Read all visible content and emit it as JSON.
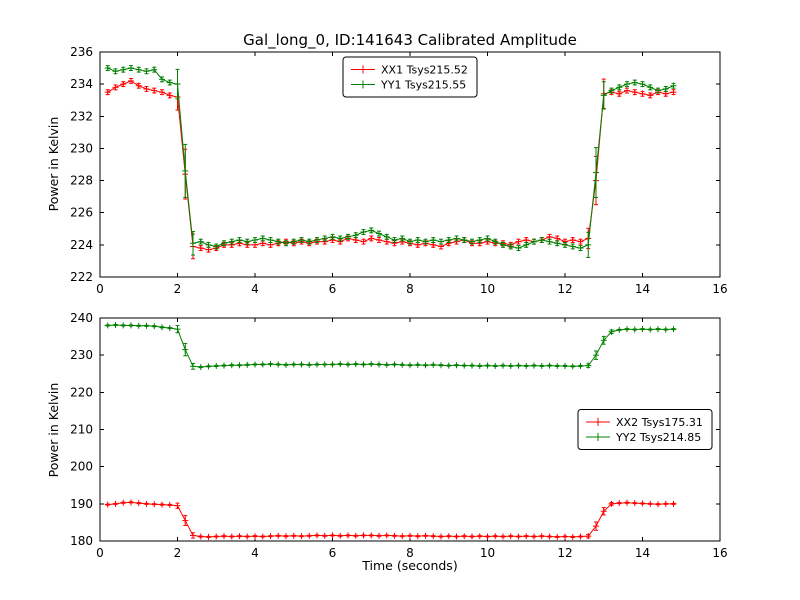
{
  "chart_data": [
    {
      "type": "line",
      "title": "Gal_long_0, ID:141643 Calibrated Amplitude",
      "xlabel": "",
      "ylabel": "Power in Kelvin",
      "xlim": [
        0,
        16
      ],
      "ylim": [
        222,
        236
      ],
      "xticks": [
        0,
        2,
        4,
        6,
        8,
        10,
        12,
        14,
        16
      ],
      "yticks": [
        222,
        224,
        226,
        228,
        230,
        232,
        234,
        236
      ],
      "grid": false,
      "error_bars": true,
      "marker": "+",
      "legend": {
        "position": "upper center",
        "entries": [
          "XX1 Tsys215.52",
          "YY1 Tsys215.55"
        ]
      },
      "x": [
        0.2,
        0.4,
        0.6,
        0.8,
        1.0,
        1.2,
        1.4,
        1.6,
        1.8,
        2.0,
        2.2,
        2.4,
        2.6,
        2.8,
        3.0,
        3.2,
        3.4,
        3.6,
        3.8,
        4.0,
        4.2,
        4.4,
        4.6,
        4.8,
        5.0,
        5.2,
        5.4,
        5.6,
        5.8,
        6.0,
        6.2,
        6.4,
        6.6,
        6.8,
        7.0,
        7.2,
        7.4,
        7.6,
        7.8,
        8.0,
        8.2,
        8.4,
        8.6,
        8.8,
        9.0,
        9.2,
        9.4,
        9.6,
        9.8,
        10.0,
        10.2,
        10.4,
        10.6,
        10.8,
        11.0,
        11.2,
        11.4,
        11.6,
        11.8,
        12.0,
        12.2,
        12.4,
        12.6,
        12.8,
        13.0,
        13.2,
        13.4,
        13.6,
        13.8,
        14.0,
        14.2,
        14.4,
        14.6,
        14.8
      ],
      "series": [
        {
          "name": "XX1 Tsys215.52",
          "color": "#ff0000",
          "values": [
            233.5,
            233.8,
            234.0,
            234.2,
            233.9,
            233.7,
            233.6,
            233.5,
            233.3,
            233.2,
            228.4,
            223.9,
            223.8,
            223.7,
            223.8,
            224.0,
            224.0,
            224.1,
            224.0,
            224.0,
            224.1,
            224.0,
            224.1,
            224.2,
            224.1,
            224.2,
            224.1,
            224.2,
            224.2,
            224.3,
            224.2,
            224.4,
            224.3,
            224.2,
            224.4,
            224.3,
            224.2,
            224.1,
            224.2,
            224.1,
            224.0,
            224.1,
            224.0,
            223.9,
            224.1,
            224.2,
            224.3,
            224.1,
            224.1,
            224.2,
            224.1,
            224.1,
            224.0,
            224.2,
            224.3,
            224.2,
            224.3,
            224.5,
            224.4,
            224.2,
            224.3,
            224.2,
            224.4,
            228.0,
            233.4,
            233.5,
            233.4,
            233.6,
            233.5,
            233.4,
            233.3,
            233.5,
            233.4,
            233.5
          ]
        },
        {
          "name": "YY1 Tsys215.55",
          "color": "#008000",
          "values": [
            235.0,
            234.8,
            234.9,
            235.0,
            234.9,
            234.8,
            234.9,
            234.3,
            234.1,
            234.0,
            228.6,
            224.1,
            224.2,
            224.0,
            223.9,
            224.1,
            224.2,
            224.3,
            224.2,
            224.3,
            224.4,
            224.3,
            224.2,
            224.1,
            224.2,
            224.3,
            224.2,
            224.3,
            224.4,
            224.5,
            224.4,
            224.5,
            224.6,
            224.8,
            224.9,
            224.7,
            224.5,
            224.3,
            224.4,
            224.2,
            224.3,
            224.2,
            224.3,
            224.2,
            224.3,
            224.4,
            224.3,
            224.2,
            224.3,
            224.4,
            224.2,
            224.0,
            223.9,
            223.8,
            224.0,
            224.2,
            224.3,
            224.2,
            224.1,
            224.0,
            223.9,
            223.8,
            224.0,
            228.5,
            233.3,
            233.6,
            233.8,
            234.0,
            234.1,
            234.0,
            233.8,
            233.6,
            233.7,
            233.9
          ]
        }
      ]
    },
    {
      "type": "line",
      "title": "",
      "xlabel": "Time (seconds)",
      "ylabel": "Power in Kelvin",
      "xlim": [
        0,
        16
      ],
      "ylim": [
        180,
        240
      ],
      "xticks": [
        0,
        2,
        4,
        6,
        8,
        10,
        12,
        14,
        16
      ],
      "yticks": [
        180,
        190,
        200,
        210,
        220,
        230,
        240
      ],
      "grid": false,
      "error_bars": true,
      "marker": "+",
      "legend": {
        "position": "center right",
        "entries": [
          "XX2 Tsys175.31",
          "YY2 Tsys214.85"
        ]
      },
      "x": [
        0.2,
        0.4,
        0.6,
        0.8,
        1.0,
        1.2,
        1.4,
        1.6,
        1.8,
        2.0,
        2.2,
        2.4,
        2.6,
        2.8,
        3.0,
        3.2,
        3.4,
        3.6,
        3.8,
        4.0,
        4.2,
        4.4,
        4.6,
        4.8,
        5.0,
        5.2,
        5.4,
        5.6,
        5.8,
        6.0,
        6.2,
        6.4,
        6.6,
        6.8,
        7.0,
        7.2,
        7.4,
        7.6,
        7.8,
        8.0,
        8.2,
        8.4,
        8.6,
        8.8,
        9.0,
        9.2,
        9.4,
        9.6,
        9.8,
        10.0,
        10.2,
        10.4,
        10.6,
        10.8,
        11.0,
        11.2,
        11.4,
        11.6,
        11.8,
        12.0,
        12.2,
        12.4,
        12.6,
        12.8,
        13.0,
        13.2,
        13.4,
        13.6,
        13.8,
        14.0,
        14.2,
        14.4,
        14.6,
        14.8
      ],
      "series": [
        {
          "name": "XX2 Tsys175.31",
          "color": "#ff0000",
          "values": [
            189.8,
            190.0,
            190.3,
            190.4,
            190.2,
            190.0,
            189.9,
            189.8,
            189.7,
            189.5,
            185.5,
            181.5,
            181.2,
            181.1,
            181.2,
            181.3,
            181.2,
            181.3,
            181.2,
            181.3,
            181.2,
            181.3,
            181.4,
            181.3,
            181.4,
            181.3,
            181.4,
            181.5,
            181.4,
            181.5,
            181.4,
            181.5,
            181.4,
            181.5,
            181.5,
            181.4,
            181.5,
            181.4,
            181.3,
            181.4,
            181.3,
            181.4,
            181.3,
            181.2,
            181.3,
            181.2,
            181.3,
            181.2,
            181.3,
            181.2,
            181.3,
            181.2,
            181.3,
            181.2,
            181.3,
            181.2,
            181.3,
            181.2,
            181.1,
            181.2,
            181.1,
            181.2,
            181.3,
            184.0,
            188.0,
            190.0,
            190.2,
            190.3,
            190.2,
            190.1,
            190.0,
            189.9,
            190.0,
            190.0
          ]
        },
        {
          "name": "YY2 Tsys214.85",
          "color": "#008000",
          "values": [
            238.0,
            238.1,
            238.0,
            238.0,
            237.9,
            237.9,
            237.8,
            237.5,
            237.3,
            237.0,
            231.5,
            227.0,
            226.8,
            227.0,
            227.1,
            227.2,
            227.3,
            227.3,
            227.4,
            227.5,
            227.5,
            227.6,
            227.5,
            227.4,
            227.5,
            227.5,
            227.4,
            227.5,
            227.5,
            227.5,
            227.6,
            227.5,
            227.6,
            227.5,
            227.6,
            227.5,
            227.4,
            227.5,
            227.4,
            227.3,
            227.4,
            227.3,
            227.4,
            227.3,
            227.2,
            227.3,
            227.2,
            227.2,
            227.1,
            227.2,
            227.1,
            227.2,
            227.1,
            227.2,
            227.1,
            227.2,
            227.1,
            227.2,
            227.1,
            227.1,
            227.0,
            227.1,
            227.2,
            230.0,
            234.0,
            236.3,
            236.8,
            237.0,
            236.9,
            237.0,
            236.9,
            237.0,
            236.9,
            237.0
          ]
        }
      ]
    }
  ]
}
